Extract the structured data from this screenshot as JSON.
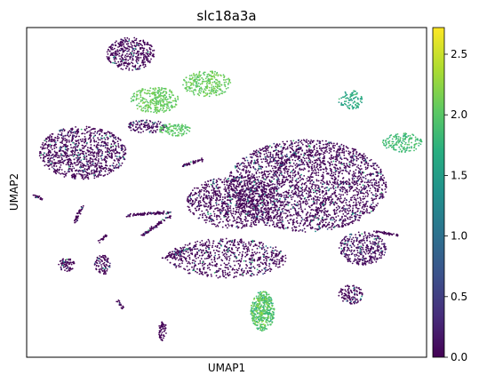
{
  "chart_data": {
    "type": "scatter",
    "title": "slc18a3a",
    "xlabel": "UMAP1",
    "ylabel": "UMAP2",
    "colorbar": {
      "colormap": "viridis",
      "range": [
        0,
        2.72
      ],
      "ticks": [
        "0.0",
        "0.5",
        "1.0",
        "1.5",
        "2.0",
        "2.5"
      ],
      "tick_values": [
        0.0,
        0.5,
        1.0,
        1.5,
        2.0,
        2.5
      ]
    },
    "grid": false,
    "clusters": [
      {
        "id": "top-isolated",
        "x": 0.26,
        "y": 0.92,
        "w": 0.06,
        "h": 0.05,
        "n": 380,
        "mean": 0.06
      },
      {
        "id": "green-left",
        "x": 0.32,
        "y": 0.78,
        "w": 0.06,
        "h": 0.04,
        "n": 300,
        "mean": 2.05,
        "spread": 0.25
      },
      {
        "id": "green-mid",
        "x": 0.37,
        "y": 0.69,
        "w": 0.04,
        "h": 0.02,
        "n": 110,
        "mean": 2.0,
        "spread": 0.2
      },
      {
        "id": "green-right",
        "x": 0.45,
        "y": 0.83,
        "w": 0.06,
        "h": 0.04,
        "n": 280,
        "mean": 2.05,
        "spread": 0.25
      },
      {
        "id": "small-left-green",
        "x": 0.3,
        "y": 0.7,
        "w": 0.05,
        "h": 0.02,
        "n": 120,
        "mean": 0.15
      },
      {
        "id": "right-teal",
        "x": 0.81,
        "y": 0.78,
        "w": 0.03,
        "h": 0.03,
        "n": 90,
        "mean": 1.6,
        "spread": 0.45
      },
      {
        "id": "far-right-green",
        "x": 0.94,
        "y": 0.65,
        "w": 0.05,
        "h": 0.03,
        "n": 160,
        "mean": 1.85,
        "spread": 0.3
      },
      {
        "id": "left-big",
        "x": 0.14,
        "y": 0.62,
        "w": 0.11,
        "h": 0.08,
        "n": 1000,
        "mean": 0.05
      },
      {
        "id": "center-main",
        "x": 0.7,
        "y": 0.52,
        "w": 0.2,
        "h": 0.14,
        "n": 2600,
        "mean": 0.07
      },
      {
        "id": "center-left",
        "x": 0.52,
        "y": 0.47,
        "w": 0.12,
        "h": 0.08,
        "n": 900,
        "mean": 0.05
      },
      {
        "id": "bottom-mid",
        "x": 0.5,
        "y": 0.3,
        "w": 0.15,
        "h": 0.06,
        "n": 700,
        "mean": 0.05
      },
      {
        "id": "bottom-green",
        "x": 0.59,
        "y": 0.14,
        "w": 0.03,
        "h": 0.06,
        "n": 420,
        "mean": 1.9,
        "spread": 0.55
      },
      {
        "id": "right-lower",
        "x": 0.84,
        "y": 0.33,
        "w": 0.06,
        "h": 0.05,
        "n": 360,
        "mean": 0.15
      },
      {
        "id": "bottom-right",
        "x": 0.81,
        "y": 0.19,
        "w": 0.03,
        "h": 0.03,
        "n": 120,
        "mean": 0.05
      },
      {
        "id": "left-lower",
        "x": 0.1,
        "y": 0.28,
        "w": 0.02,
        "h": 0.02,
        "n": 70,
        "mean": 0.03
      },
      {
        "id": "small-bottom",
        "x": 0.34,
        "y": 0.08,
        "w": 0.01,
        "h": 0.03,
        "n": 60,
        "mean": 0.05
      },
      {
        "id": "left-small-column",
        "x": 0.19,
        "y": 0.28,
        "w": 0.02,
        "h": 0.03,
        "n": 90,
        "mean": 0.03
      }
    ],
    "strands": [
      {
        "x1": 0.25,
        "y1": 0.43,
        "x2": 0.36,
        "y2": 0.44,
        "n": 90,
        "mean": 0.03
      },
      {
        "x1": 0.29,
        "y1": 0.37,
        "x2": 0.36,
        "y2": 0.43,
        "n": 80,
        "mean": 0.03
      },
      {
        "x1": 0.34,
        "y1": 0.3,
        "x2": 0.43,
        "y2": 0.34,
        "n": 70,
        "mean": 0.04
      },
      {
        "x1": 0.12,
        "y1": 0.41,
        "x2": 0.14,
        "y2": 0.46,
        "n": 40,
        "mean": 0.02
      },
      {
        "x1": 0.02,
        "y1": 0.49,
        "x2": 0.04,
        "y2": 0.48,
        "n": 25,
        "mean": 0.02
      },
      {
        "x1": 0.18,
        "y1": 0.35,
        "x2": 0.2,
        "y2": 0.37,
        "n": 20,
        "mean": 0.02
      },
      {
        "x1": 0.39,
        "y1": 0.58,
        "x2": 0.44,
        "y2": 0.6,
        "n": 45,
        "mean": 0.03
      },
      {
        "x1": 0.87,
        "y1": 0.38,
        "x2": 0.93,
        "y2": 0.37,
        "n": 45,
        "mean": 0.04
      },
      {
        "x1": 0.23,
        "y1": 0.17,
        "x2": 0.24,
        "y2": 0.15,
        "n": 18,
        "mean": 0.02
      },
      {
        "x1": 0.71,
        "y1": 0.41,
        "x2": 0.75,
        "y2": 0.48,
        "n": 40,
        "mean": 0.05
      },
      {
        "x1": 0.62,
        "y1": 0.56,
        "x2": 0.68,
        "y2": 0.63,
        "n": 60,
        "mean": 0.05
      }
    ]
  }
}
